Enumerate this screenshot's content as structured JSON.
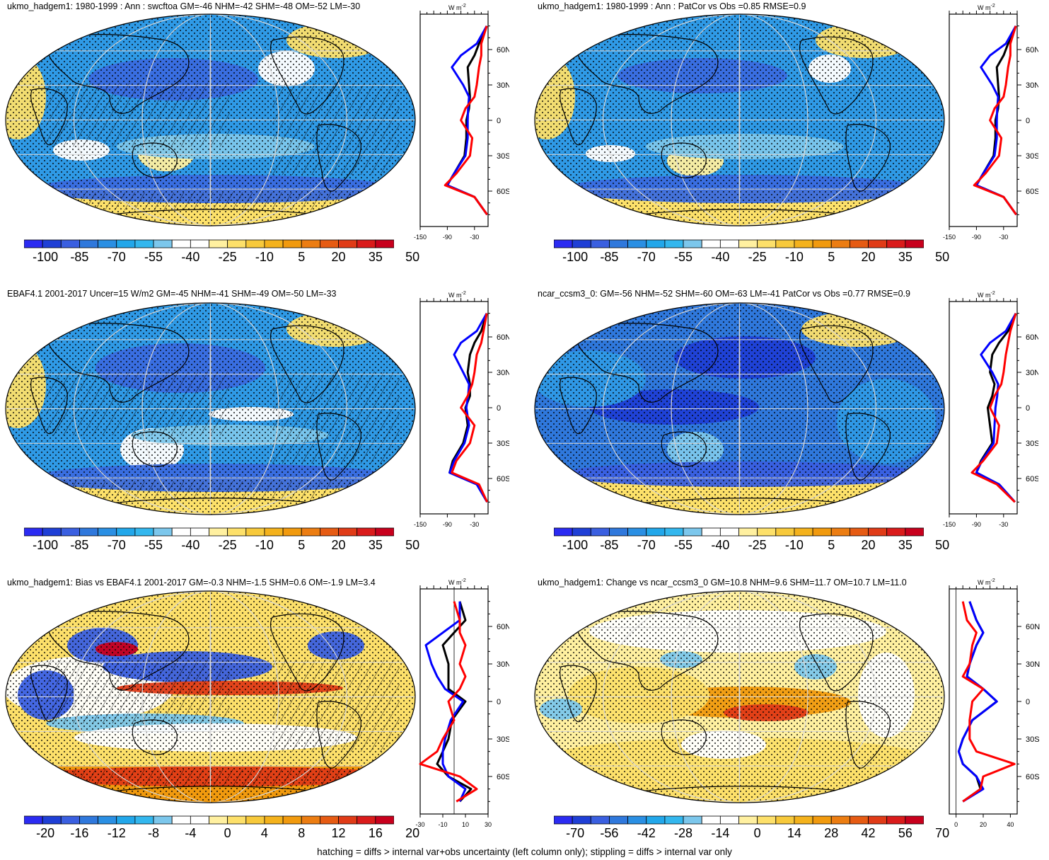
{
  "footer": "hatching = diffs > internal var+obs uncertainty (left column only); stippling = diffs > internal var only",
  "zonal_unit": "W m",
  "zonal_unit_sup": "-2",
  "colors": {
    "model": "#000000",
    "obs": "#0000ff",
    "other": "#ff0000",
    "land_line": "#000000",
    "grid": "#d8d8d8"
  },
  "panels": [
    {
      "id": "p1",
      "title": "ukmo_hadgem1: 1980-1999 : Ann : swcftoa GM=-46 NHM=-42 SHM=-48 OM=-52 LM=-30",
      "colorbar": {
        "palette": "abs",
        "labels": [
          "-100",
          "-85",
          "-70",
          "-55",
          "-40",
          "-25",
          "-10",
          "5",
          "20",
          "35",
          "50"
        ]
      },
      "zonal": {
        "xticks": [
          "-150",
          "-90",
          "-30"
        ],
        "xrange": [
          -150,
          0
        ],
        "zero_line": false
      },
      "lat_labels": [
        "60N",
        "30N",
        "0",
        "30S",
        "60S"
      ],
      "hatched": true
    },
    {
      "id": "p2",
      "title": "ukmo_hadgem1: 1980-1999 : Ann : PatCor vs Obs =0.85 RMSE=0.9",
      "colorbar": {
        "palette": "abs",
        "labels": [
          "-100",
          "-85",
          "-70",
          "-55",
          "-40",
          "-25",
          "-10",
          "5",
          "20",
          "35",
          "50"
        ]
      },
      "zonal": {
        "xticks": [
          "-150",
          "-90",
          "-30"
        ],
        "xrange": [
          -150,
          0
        ],
        "zero_line": false
      },
      "lat_labels": [
        "60N",
        "30N",
        "0",
        "30S",
        "60S"
      ],
      "hatched": false
    },
    {
      "id": "p3",
      "title": "EBAF4.1 2001-2017 Uncer=15 W/m2 GM=-45 NHM=-41 SHM=-49 OM=-50 LM=-33",
      "colorbar": {
        "palette": "abs",
        "labels": [
          "-100",
          "-85",
          "-70",
          "-55",
          "-40",
          "-25",
          "-10",
          "5",
          "20",
          "35",
          "50"
        ]
      },
      "zonal": {
        "xticks": [
          "-150",
          "-90",
          "-30"
        ],
        "xrange": [
          -150,
          0
        ],
        "zero_line": false
      },
      "lat_labels": [
        "60N",
        "30N",
        "0",
        "30S",
        "60S"
      ],
      "hatched": true
    },
    {
      "id": "p4",
      "title": "ncar_ccsm3_0: GM=-56 NHM=-52 SHM=-60 OM=-63 LM=-41 PatCor vs Obs =0.77 RMSE=0.9",
      "colorbar": {
        "palette": "abs",
        "labels": [
          "-100",
          "-85",
          "-70",
          "-55",
          "-40",
          "-25",
          "-10",
          "5",
          "20",
          "35",
          "50"
        ]
      },
      "zonal": {
        "xticks": [
          "-150",
          "-90",
          "-30"
        ],
        "xrange": [
          -150,
          0
        ],
        "zero_line": false
      },
      "lat_labels": [
        "60N",
        "30N",
        "0",
        "30S",
        "60S"
      ],
      "hatched": false
    },
    {
      "id": "p5",
      "title": "ukmo_hadgem1: Bias vs EBAF4.1 2001-2017 GM=-0.3 NHM=-1.5 SHM=0.6 OM=-1.9 LM=3.4",
      "colorbar": {
        "palette": "bias",
        "labels": [
          "-20",
          "-16",
          "-12",
          "-8",
          "-4",
          "0",
          "4",
          "8",
          "12",
          "16",
          "20"
        ]
      },
      "zonal": {
        "xticks": [
          "-30",
          "-10",
          "10",
          "30"
        ],
        "xrange": [
          -30,
          30
        ],
        "zero_line": true
      },
      "lat_labels": [
        "60N",
        "30N",
        "0",
        "30S",
        "60S"
      ],
      "hatched": true
    },
    {
      "id": "p6",
      "title": "ukmo_hadgem1: Change vs ncar_ccsm3_0 GM=10.8 NHM=9.6 SHM=11.7 OM=10.7 LM=11.0",
      "colorbar": {
        "palette": "change",
        "labels": [
          "-70",
          "-56",
          "-42",
          "-28",
          "-14",
          "0",
          "14",
          "28",
          "42",
          "56",
          "70"
        ]
      },
      "zonal": {
        "xticks": [
          "0",
          "20",
          "40"
        ],
        "xrange": [
          -5,
          45
        ],
        "zero_line": true
      },
      "lat_labels": [
        "60N",
        "30N",
        "0",
        "30S",
        "60S"
      ],
      "hatched": false
    }
  ],
  "chart_data": [
    {
      "type": "line",
      "title": "ukmo_hadgem1: 1980-1999 : Ann : swcftoa GM=-46 NHM=-42 SHM=-48 OM=-52 LM=-30",
      "ylabel": "",
      "xlabel": "W m-2",
      "xlim": [
        -150,
        0
      ],
      "ylim": [
        -90,
        90
      ],
      "y": [
        -80,
        -65,
        -55,
        -45,
        -30,
        -15,
        0,
        10,
        20,
        30,
        45,
        55,
        65,
        80
      ],
      "series": [
        {
          "color": "black",
          "values": [
            -2,
            -30,
            -90,
            -75,
            -52,
            -48,
            -48,
            -42,
            -40,
            -42,
            -45,
            -30,
            -20,
            -3
          ]
        },
        {
          "color": "blue",
          "values": [
            -2,
            -30,
            -90,
            -75,
            -50,
            -45,
            -45,
            -44,
            -42,
            -55,
            -80,
            -60,
            -25,
            -3
          ]
        },
        {
          "color": "red",
          "values": [
            -2,
            -30,
            -95,
            -70,
            -40,
            -35,
            -60,
            -50,
            -30,
            -25,
            -20,
            -15,
            -15,
            -3
          ]
        }
      ]
    },
    {
      "type": "line",
      "title": "ukmo_hadgem1: 1980-1999 : Ann : PatCor vs Obs =0.85 RMSE=0.9",
      "xlabel": "W m-2",
      "xlim": [
        -150,
        0
      ],
      "ylim": [
        -90,
        90
      ],
      "y": [
        -80,
        -65,
        -55,
        -45,
        -30,
        -15,
        0,
        10,
        20,
        30,
        45,
        55,
        65,
        80
      ],
      "series": [
        {
          "color": "black",
          "values": [
            -2,
            -30,
            -90,
            -75,
            -52,
            -48,
            -48,
            -42,
            -40,
            -42,
            -45,
            -30,
            -20,
            -3
          ]
        },
        {
          "color": "blue",
          "values": [
            -2,
            -30,
            -90,
            -75,
            -50,
            -45,
            -45,
            -44,
            -42,
            -55,
            -80,
            -60,
            -25,
            -3
          ]
        },
        {
          "color": "red",
          "values": [
            -2,
            -30,
            -95,
            -70,
            -40,
            -35,
            -60,
            -50,
            -30,
            -25,
            -20,
            -15,
            -15,
            -3
          ]
        }
      ]
    },
    {
      "type": "line",
      "title": "EBAF4.1 2001-2017 Uncer=15 W/m2 GM=-45 NHM=-41 SHM=-49 OM=-50 LM=-33",
      "xlabel": "W m-2",
      "xlim": [
        -150,
        0
      ],
      "ylim": [
        -90,
        90
      ],
      "y": [
        -80,
        -65,
        -55,
        -45,
        -30,
        -15,
        0,
        10,
        20,
        30,
        45,
        55,
        65,
        80
      ],
      "series": [
        {
          "color": "black",
          "values": [
            -2,
            -25,
            -85,
            -78,
            -55,
            -45,
            -50,
            -40,
            -40,
            -45,
            -40,
            -30,
            -15,
            -3
          ]
        },
        {
          "color": "blue",
          "values": [
            -2,
            -25,
            -85,
            -75,
            -52,
            -42,
            -48,
            -44,
            -42,
            -55,
            -75,
            -60,
            -25,
            -3
          ]
        },
        {
          "color": "red",
          "values": [
            -2,
            -20,
            -80,
            -70,
            -40,
            -30,
            -60,
            -45,
            -35,
            -30,
            -25,
            -15,
            -10,
            -3
          ]
        }
      ]
    },
    {
      "type": "line",
      "title": "ncar_ccsm3_0: GM=-56 NHM=-52 SHM=-60 OM=-63 LM=-41 PatCor vs Obs =0.77 RMSE=0.9",
      "xlabel": "W m-2",
      "xlim": [
        -150,
        0
      ],
      "ylim": [
        -90,
        90
      ],
      "y": [
        -80,
        -65,
        -55,
        -45,
        -30,
        -15,
        0,
        10,
        20,
        30,
        45,
        55,
        65,
        80
      ],
      "series": [
        {
          "color": "black",
          "values": [
            -5,
            -40,
            -90,
            -80,
            -55,
            -60,
            -65,
            -55,
            -50,
            -60,
            -55,
            -40,
            -20,
            -3
          ]
        },
        {
          "color": "blue",
          "values": [
            -5,
            -40,
            -90,
            -78,
            -52,
            -50,
            -48,
            -44,
            -42,
            -55,
            -80,
            -60,
            -25,
            -3
          ]
        },
        {
          "color": "red",
          "values": [
            -5,
            -45,
            -100,
            -75,
            -45,
            -40,
            -60,
            -50,
            -35,
            -30,
            -25,
            -20,
            -15,
            -3
          ]
        }
      ]
    },
    {
      "type": "line",
      "title": "ukmo_hadgem1: Bias vs EBAF4.1 2001-2017 GM=-0.3 NHM=-1.5 SHM=0.6 OM=-1.9 LM=3.4",
      "xlabel": "W m-2",
      "xlim": [
        -30,
        30
      ],
      "ylim": [
        -90,
        90
      ],
      "y": [
        -80,
        -70,
        -60,
        -50,
        -40,
        -30,
        -15,
        0,
        10,
        20,
        30,
        45,
        55,
        65,
        80
      ],
      "series": [
        {
          "color": "black",
          "values": [
            5,
            15,
            -5,
            -15,
            -10,
            -5,
            -2,
            10,
            -5,
            -5,
            -5,
            -10,
            0,
            10,
            5
          ]
        },
        {
          "color": "blue",
          "values": [
            5,
            10,
            -5,
            -10,
            -10,
            -8,
            -3,
            8,
            -8,
            -15,
            -20,
            -25,
            -10,
            5,
            5
          ]
        },
        {
          "color": "red",
          "values": [
            2,
            20,
            5,
            -30,
            -15,
            -10,
            0,
            -5,
            5,
            10,
            5,
            10,
            5,
            5,
            0
          ]
        }
      ]
    },
    {
      "type": "line",
      "title": "ukmo_hadgem1: Change vs ncar_ccsm3_0 GM=10.8 NHM=9.6 SHM=11.7 OM=10.7 LM=11.0",
      "xlabel": "W m-2",
      "xlim": [
        -5,
        45
      ],
      "ylim": [
        -90,
        90
      ],
      "y": [
        -80,
        -70,
        -60,
        -50,
        -40,
        -30,
        -15,
        0,
        10,
        20,
        30,
        45,
        55,
        65,
        80
      ],
      "series": [
        {
          "color": "black",
          "values": [
            5,
            18,
            15,
            5,
            2,
            5,
            12,
            30,
            20,
            8,
            10,
            15,
            20,
            15,
            10
          ]
        },
        {
          "color": "blue",
          "values": [
            5,
            20,
            15,
            5,
            2,
            5,
            12,
            30,
            20,
            8,
            10,
            15,
            20,
            15,
            10
          ]
        },
        {
          "color": "red",
          "values": [
            5,
            18,
            20,
            43,
            15,
            10,
            10,
            12,
            20,
            5,
            10,
            12,
            15,
            8,
            5
          ]
        }
      ]
    }
  ]
}
